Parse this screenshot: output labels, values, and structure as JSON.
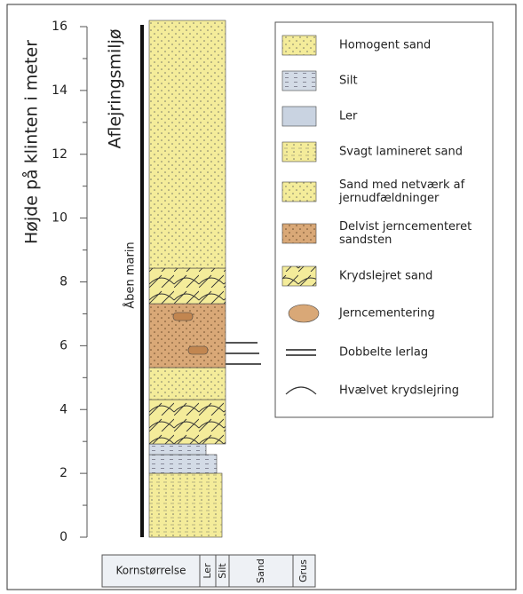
{
  "axis": {
    "label": "Højde på klinten i meter",
    "ylim": [
      0,
      16
    ],
    "yticks": [
      0,
      2,
      4,
      6,
      8,
      10,
      12,
      14,
      16
    ],
    "minor_yticks": [
      1,
      3,
      5,
      7,
      9,
      11,
      13,
      15
    ]
  },
  "column": {
    "environment_header": "Aflejringsmiljø",
    "environment": "Åben marin"
  },
  "legend": [
    {
      "lines": [
        "Homogent sand"
      ]
    },
    {
      "lines": [
        "Silt"
      ]
    },
    {
      "lines": [
        "Ler"
      ]
    },
    {
      "lines": [
        "Svagt lamineret sand"
      ]
    },
    {
      "lines": [
        "Sand med netværk af",
        "jernudfældninger"
      ]
    },
    {
      "lines": [
        "Delvist jerncementeret",
        "sandsten"
      ]
    },
    {
      "lines": [
        "Krydslejret sand"
      ]
    },
    {
      "lines": [
        "Jerncementering"
      ]
    },
    {
      "lines": [
        "Dobbelte lerlag"
      ]
    },
    {
      "lines": [
        "Hvælvet krydslejring"
      ]
    }
  ],
  "grain_size": {
    "title": "Kornstørrelse",
    "classes": [
      "Ler",
      "Silt",
      "Sand",
      "Grus"
    ]
  }
}
